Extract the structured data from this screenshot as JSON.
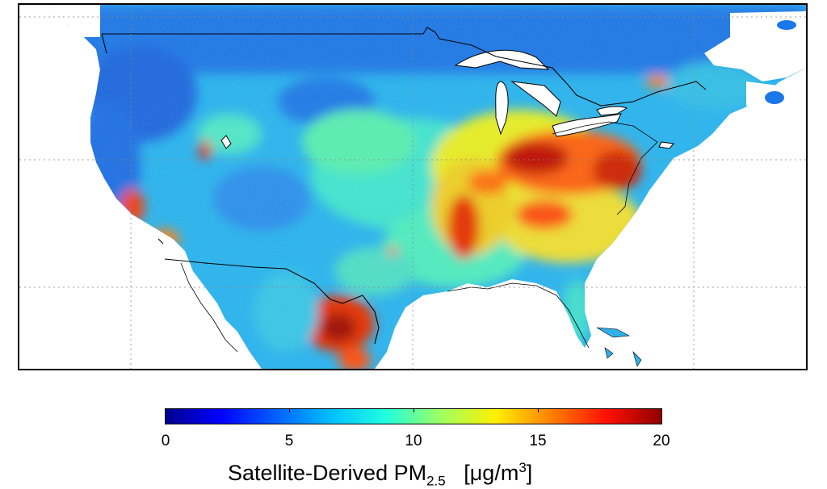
{
  "map": {
    "region": "North America",
    "variable": "Satellite-Derived PM2.5",
    "graticule": "dotted",
    "boundaries": [
      "coastlines",
      "national borders"
    ],
    "hotspot_areas": [
      "Ohio River Valley",
      "Mid-Atlantic",
      "Central Valley of California",
      "Los Angeles Basin",
      "Mississippi Valley",
      "Central Mexico"
    ]
  },
  "colorbar": {
    "min": 0,
    "max": 20,
    "ticks": [
      "0",
      "5",
      "10",
      "15",
      "20"
    ],
    "title_main": "Satellite-Derived PM",
    "title_sub": "2.5",
    "title_unit": "[μg/m",
    "title_unit_sup": "3",
    "title_unit_close": "]",
    "colormap": [
      "#00008f",
      "#0000ff",
      "#0060ff",
      "#00bfff",
      "#20ffdf",
      "#9fff60",
      "#ffef00",
      "#ff8000",
      "#ff1000",
      "#8f0000"
    ]
  }
}
